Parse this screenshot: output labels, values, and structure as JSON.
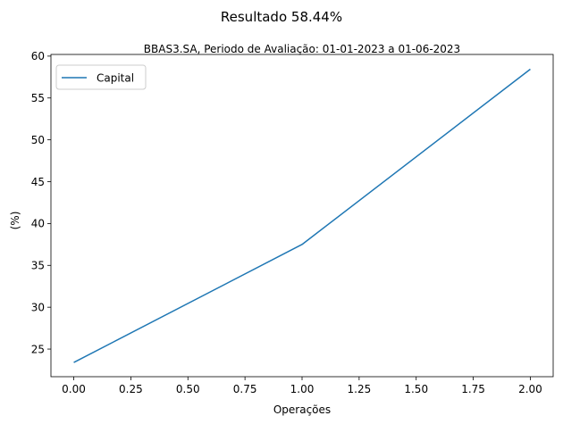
{
  "chart_data": {
    "type": "line",
    "suptitle": "Resultado 58.44%",
    "title": "BBAS3.SA, Periodo de Avaliação: 01-01-2023 a 01-06-2023",
    "xlabel": "Operações",
    "ylabel": "(%)",
    "xlim": [
      -0.1,
      2.1
    ],
    "ylim": [
      21.7,
      60.2
    ],
    "xticks": [
      0.0,
      0.25,
      0.5,
      0.75,
      1.0,
      1.25,
      1.5,
      1.75,
      2.0
    ],
    "xtick_labels": [
      "0.00",
      "0.25",
      "0.50",
      "0.75",
      "1.00",
      "1.25",
      "1.50",
      "1.75",
      "2.00"
    ],
    "yticks": [
      25,
      30,
      35,
      40,
      45,
      50,
      55,
      60
    ],
    "ytick_labels": [
      "25",
      "30",
      "35",
      "40",
      "45",
      "50",
      "55",
      "60"
    ],
    "grid": false,
    "legend_position": "upper-left",
    "series": [
      {
        "name": "Capital",
        "color": "#1f77b4",
        "x": [
          0,
          1,
          2
        ],
        "y": [
          23.4,
          37.5,
          58.44
        ]
      }
    ]
  }
}
